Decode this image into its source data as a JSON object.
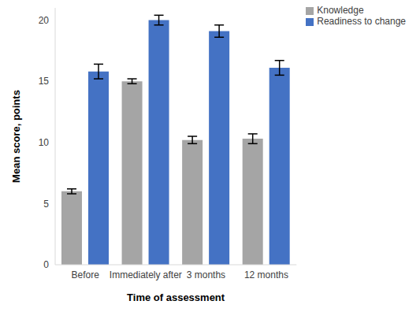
{
  "chart_data": {
    "type": "bar",
    "categories": [
      "Before",
      "Immediately after",
      "3 months",
      "12 months"
    ],
    "series": [
      {
        "name": "Knowledge",
        "color": "#a5a5a5",
        "values": [
          6.0,
          15.0,
          10.2,
          10.3
        ],
        "errors": [
          0.2,
          0.2,
          0.3,
          0.4
        ]
      },
      {
        "name": "Readiness to change",
        "color": "#4472c4",
        "values": [
          15.8,
          20.0,
          19.1,
          16.1
        ],
        "errors": [
          0.6,
          0.4,
          0.5,
          0.6
        ]
      }
    ],
    "x_label": "Time of assessment",
    "y_label": "Mean score, points",
    "ylim": [
      0,
      21
    ],
    "yticks": [
      0,
      5,
      10,
      15,
      20
    ],
    "grid": false,
    "legend": "upper right"
  }
}
